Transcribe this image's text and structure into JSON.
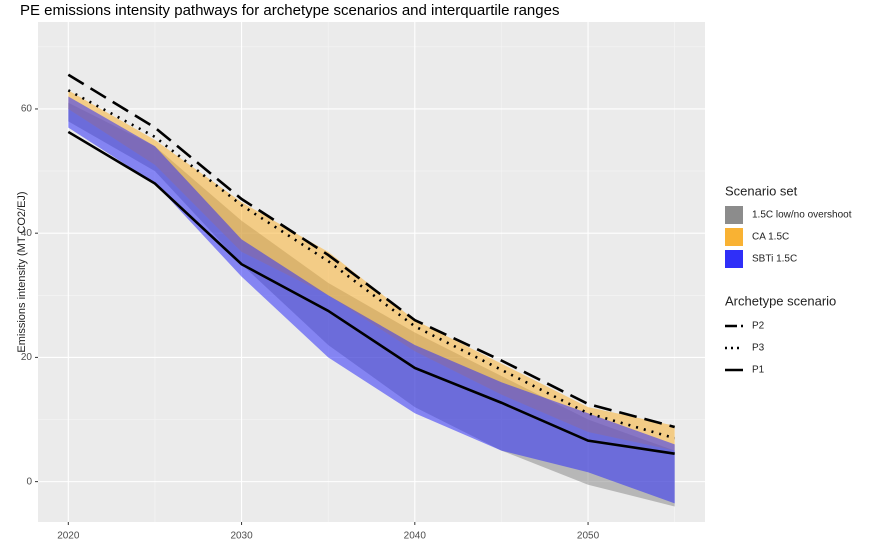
{
  "chart_data": {
    "type": "ribbon-line",
    "title": "PE emissions intensity pathways for archetype scenarios and interquartile ranges",
    "y_label": "Emissions intensity (MT CO2/EJ)",
    "x": [
      2020,
      2025,
      2030,
      2035,
      2040,
      2045,
      2050,
      2055
    ],
    "xlim": [
      2018.25,
      2056.75
    ],
    "xticks": [
      2020,
      2030,
      2040,
      2050
    ],
    "ylim": [
      -6.5,
      74
    ],
    "yticks": [
      0,
      20,
      40,
      60
    ],
    "grid": true,
    "ribbon_legend_title": "Scenario set",
    "line_legend_title": "Archetype scenario",
    "ribbons": [
      {
        "name": "1.5C low/no overshoot",
        "color": "#8c8c8c",
        "lower": [
          58,
          50,
          35,
          22,
          12,
          5,
          -0.5,
          -4
        ],
        "upper": [
          61,
          54,
          42,
          32,
          24,
          17,
          10,
          5
        ]
      },
      {
        "name": "CA 1.5C",
        "color": "#f9b233",
        "lower": [
          60,
          51,
          37,
          30,
          21,
          14,
          8,
          5
        ],
        "upper": [
          63,
          55,
          45,
          37,
          26,
          19,
          12,
          9
        ]
      },
      {
        "name": "SBTi 1.5C",
        "color": "#2f2ff8",
        "lower": [
          57,
          48,
          33,
          20,
          11,
          5,
          1.5,
          -3.5
        ],
        "upper": [
          62,
          54,
          39,
          30,
          22,
          16,
          11,
          6
        ]
      }
    ],
    "lines": [
      {
        "name": "P2",
        "linetype": "dashed",
        "values": [
          65.5,
          57,
          45.5,
          36.5,
          26,
          19.5,
          12.5,
          8.8
        ]
      },
      {
        "name": "P3",
        "linetype": "dotted",
        "values": [
          63,
          55.5,
          44.5,
          35.5,
          25,
          18,
          11,
          7
        ]
      },
      {
        "name": "P1",
        "linetype": "solid",
        "values": [
          56.3,
          48,
          35,
          27.5,
          18.3,
          12.7,
          6.6,
          4.5
        ]
      }
    ]
  }
}
